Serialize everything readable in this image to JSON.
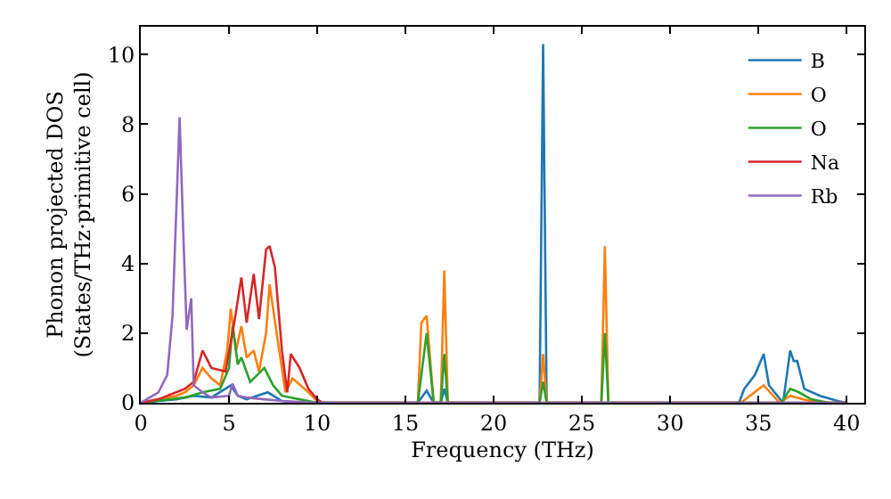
{
  "chart_data": {
    "type": "line",
    "xlabel": "Frequency (THz)",
    "ylabel": "Phonon projected DOS\n(States/THz·primitive cell)",
    "xlim": [
      0,
      41
    ],
    "ylim": [
      0,
      10.8
    ],
    "xticks": [
      0,
      5,
      10,
      15,
      20,
      25,
      30,
      35,
      40
    ],
    "yticks": [
      0,
      2,
      4,
      6,
      8,
      10
    ],
    "grid": false,
    "legend": "top right",
    "marker": "none",
    "line_style": "solid",
    "series": [
      {
        "name": "B",
        "color": "#1f77b4",
        "x": [
          0,
          1,
          2,
          3,
          4,
          5.1,
          5.5,
          6,
          7.2,
          8,
          9,
          15.7,
          16.2,
          16.6,
          17.0,
          17.2,
          17.4,
          22.6,
          22.8,
          23.0,
          33.9,
          34.2,
          34.8,
          35.3,
          35.6,
          36.4,
          36.8,
          37.0,
          37.2,
          37.6,
          38.5,
          39.5,
          40
        ],
        "values": [
          0,
          0.05,
          0.1,
          0.2,
          0.15,
          0.5,
          0.2,
          0.1,
          0.3,
          0.05,
          0,
          0,
          0.35,
          0,
          0,
          0.4,
          0,
          0,
          10.3,
          0,
          0,
          0.4,
          0.8,
          1.4,
          0.5,
          0,
          1.5,
          1.2,
          1.2,
          0.4,
          0.2,
          0.05,
          0
        ]
      },
      {
        "name": "O",
        "color": "#ff7f0e",
        "x": [
          0,
          1,
          2,
          2.5,
          3,
          3.5,
          4,
          4.5,
          4.9,
          5.1,
          5.4,
          5.7,
          6,
          6.4,
          6.7,
          7.1,
          7.3,
          7.7,
          8.2,
          8.6,
          9.5,
          10,
          10.3,
          15.7,
          15.9,
          16.2,
          16.6,
          17.0,
          17.2,
          17.4,
          22.6,
          22.8,
          23.0,
          26.1,
          26.3,
          26.5,
          34.0,
          35.3,
          36.2,
          36.8,
          37.5,
          38.5,
          40
        ],
        "values": [
          0,
          0.1,
          0.2,
          0.3,
          0.5,
          1.0,
          0.7,
          0.5,
          1.5,
          2.7,
          1.5,
          2.2,
          1.3,
          1.5,
          0.9,
          2.0,
          3.4,
          2.0,
          0.3,
          0.7,
          0.3,
          0.05,
          0,
          0,
          2.3,
          2.5,
          0,
          0,
          3.8,
          0,
          0,
          1.4,
          0,
          0,
          4.5,
          0,
          0,
          0.5,
          0,
          0.2,
          0.1,
          0,
          0
        ]
      },
      {
        "name": "O",
        "color": "#2ca02c",
        "x": [
          0,
          2.5,
          3.5,
          4.5,
          5,
          5.2,
          5.5,
          5.7,
          6.2,
          6.8,
          7,
          7.5,
          8,
          9,
          10,
          15.7,
          16.2,
          16.6,
          17.0,
          17.2,
          17.4,
          22.6,
          22.8,
          23.0,
          26.1,
          26.3,
          26.5,
          36.3,
          36.8,
          37.3,
          38,
          39,
          40
        ],
        "values": [
          0,
          0.15,
          0.3,
          0.4,
          1.0,
          2.2,
          1.1,
          1.3,
          0.6,
          0.9,
          1.0,
          0.5,
          0.2,
          0.1,
          0,
          0,
          2.0,
          0,
          0,
          1.4,
          0,
          0,
          0.6,
          0,
          0,
          2.0,
          0,
          0,
          0.4,
          0.3,
          0.1,
          0,
          0
        ]
      },
      {
        "name": "Na",
        "color": "#d62728",
        "x": [
          0,
          1,
          2,
          2.5,
          3,
          3.5,
          4,
          4.8,
          5.3,
          5.7,
          6.0,
          6.4,
          6.7,
          7.1,
          7.3,
          7.6,
          8,
          8.3,
          8.5,
          9,
          9.5,
          10,
          10.3,
          40
        ],
        "values": [
          0,
          0.1,
          0.3,
          0.4,
          0.6,
          1.5,
          1.0,
          0.9,
          2.3,
          3.6,
          2.3,
          3.7,
          2.4,
          4.4,
          4.5,
          3.9,
          1.5,
          0.3,
          1.4,
          1.0,
          0.4,
          0.1,
          0,
          0
        ]
      },
      {
        "name": "Rb",
        "color": "#9467bd",
        "x": [
          0,
          1,
          1.5,
          1.8,
          2.2,
          2.4,
          2.6,
          2.86,
          3.0,
          3.5,
          4,
          5,
          5.2,
          5.5,
          6,
          7,
          8,
          10,
          40
        ],
        "values": [
          0,
          0.3,
          0.8,
          2.5,
          8.2,
          5,
          2.1,
          3.0,
          0.5,
          0.3,
          0.15,
          0.2,
          0.55,
          0.2,
          0.15,
          0.1,
          0.05,
          0,
          0
        ]
      }
    ]
  }
}
